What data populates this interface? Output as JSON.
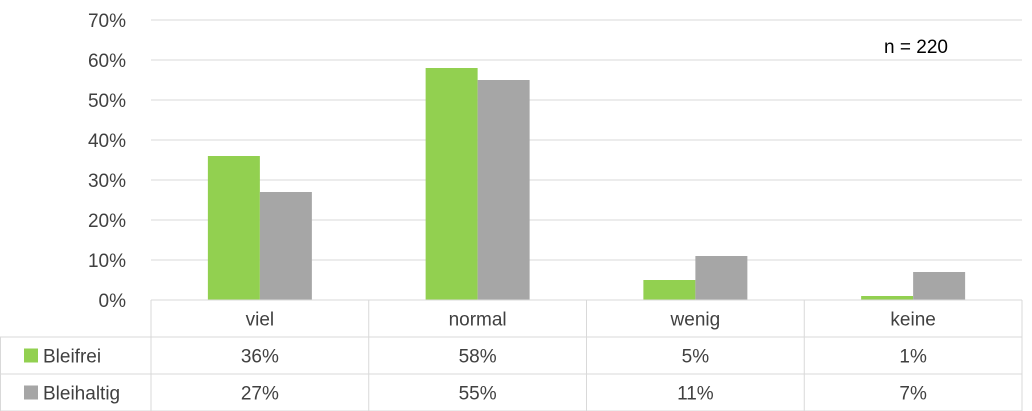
{
  "chart_data": {
    "type": "bar",
    "categories": [
      "viel",
      "normal",
      "wenig",
      "keine"
    ],
    "series": [
      {
        "name": "Bleifrei",
        "values": [
          36,
          58,
          5,
          1
        ],
        "labels": [
          "36%",
          "58%",
          "5%",
          "1%"
        ],
        "color": "#92d050"
      },
      {
        "name": "Bleihaltig",
        "values": [
          27,
          55,
          11,
          7
        ],
        "labels": [
          "27%",
          "55%",
          "11%",
          "7%"
        ],
        "color": "#a6a6a6"
      }
    ],
    "y_ticks": [
      "0%",
      "10%",
      "20%",
      "30%",
      "40%",
      "50%",
      "60%",
      "70%"
    ],
    "ylim": [
      0,
      70
    ],
    "annotation": "n = 220",
    "grid": true,
    "legend": "data-table-left"
  }
}
